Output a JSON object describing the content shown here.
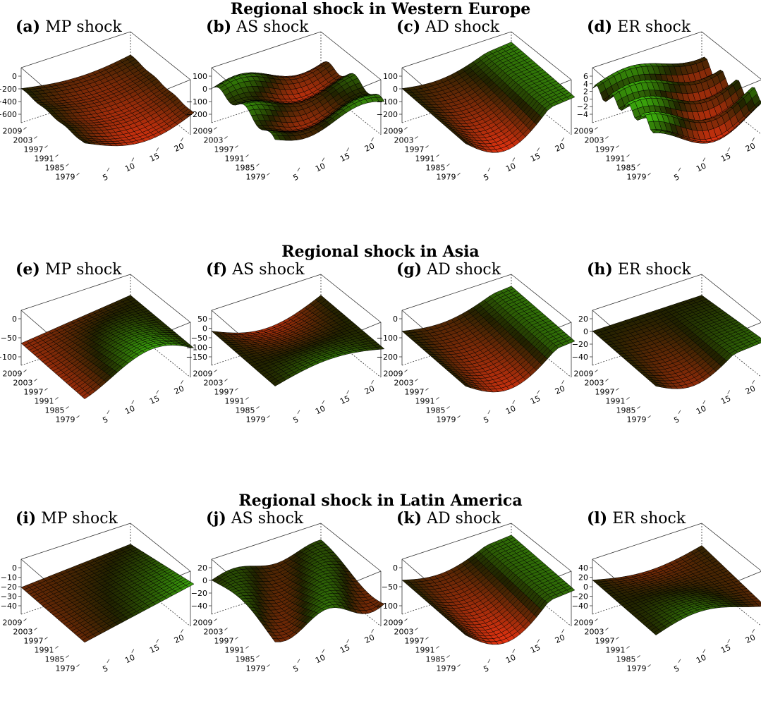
{
  "regions": [
    {
      "title": "Regional shock in Western Europe",
      "panels": [
        {
          "tag": "(a)",
          "label": "MP shock",
          "z_ticks": [
            "0",
            "−200",
            "−400",
            "−600"
          ]
        },
        {
          "tag": "(b)",
          "label": "AS shock",
          "z_ticks": [
            "100",
            "0",
            "−100",
            "−200"
          ]
        },
        {
          "tag": "(c)",
          "label": "AD shock",
          "z_ticks": [
            "100",
            "0",
            "−100",
            "−200"
          ]
        },
        {
          "tag": "(d)",
          "label": "ER shock",
          "z_ticks": [
            "6",
            "4",
            "2",
            "0",
            "−2",
            "−4"
          ]
        }
      ]
    },
    {
      "title": "Regional shock in Asia",
      "panels": [
        {
          "tag": "(e)",
          "label": "MP shock",
          "z_ticks": [
            "0",
            "−50",
            "−100"
          ]
        },
        {
          "tag": "(f)",
          "label": "AS shock",
          "z_ticks": [
            "50",
            "0",
            "−50",
            "−100",
            "−150"
          ]
        },
        {
          "tag": "(g)",
          "label": "AD shock",
          "z_ticks": [
            "0",
            "−100",
            "−200"
          ]
        },
        {
          "tag": "(h)",
          "label": "ER shock",
          "z_ticks": [
            "20",
            "0",
            "−20",
            "−40"
          ]
        }
      ]
    },
    {
      "title": "Regional shock in Latin America",
      "panels": [
        {
          "tag": "(i)",
          "label": "MP shock",
          "z_ticks": [
            "0",
            "−10",
            "−20",
            "−30",
            "−40"
          ]
        },
        {
          "tag": "(j)",
          "label": "AS shock",
          "z_ticks": [
            "20",
            "0",
            "−20",
            "−40"
          ]
        },
        {
          "tag": "(k)",
          "label": "AD shock",
          "z_ticks": [
            "0",
            "−50",
            "−100"
          ]
        },
        {
          "tag": "(l)",
          "label": "ER shock",
          "z_ticks": [
            "40",
            "20",
            "0",
            "−20",
            "−40"
          ]
        }
      ]
    }
  ],
  "chart_data": {
    "type": "surface",
    "year_ticks": [
      "2009",
      "2003",
      "1997",
      "1991",
      "1985",
      "1979"
    ],
    "horizon_ticks": [
      "5",
      "10",
      "15",
      "20"
    ],
    "colors": {
      "high": "#44dd11",
      "mid": "#222200",
      "low": "#ee3311"
    }
  }
}
